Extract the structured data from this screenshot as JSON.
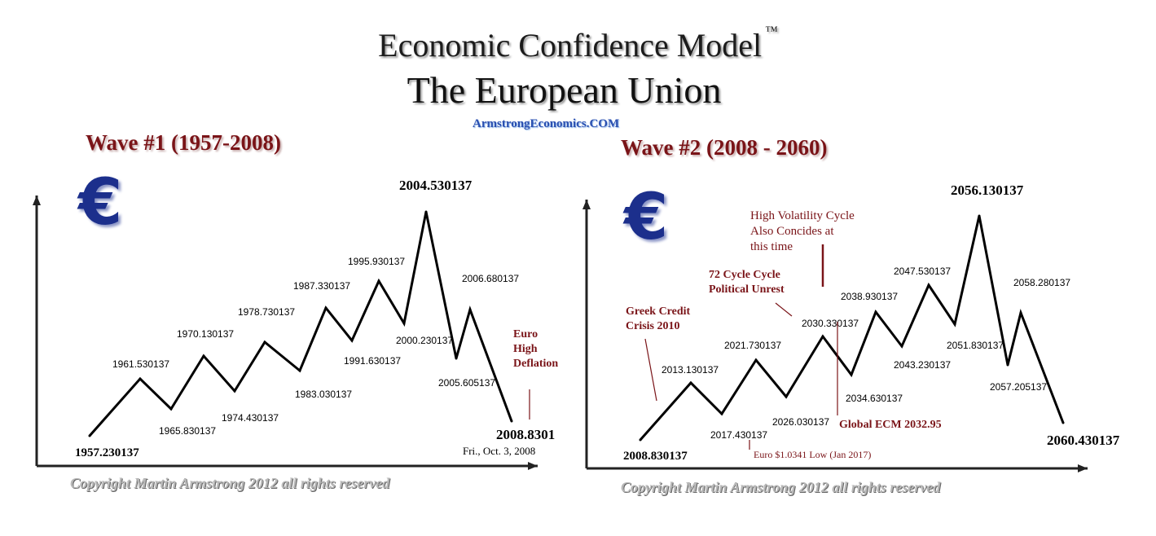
{
  "header": {
    "title_line1": "Economic Confidence Model",
    "trademark": "™",
    "title_line2": "The European Union",
    "website": "ArmstrongEconomics.COM"
  },
  "icons": {
    "currency": "euro-icon"
  },
  "colors": {
    "annotation": "#7a1418",
    "euro_logo": "#1c2f8c",
    "line": "#000000"
  },
  "chart_data": [
    {
      "type": "line",
      "title": "Wave #1 (1957-2008)",
      "euro_symbol": "€",
      "points": [
        {
          "x": 1957.230137,
          "label": "1957.230137",
          "kind": "low"
        },
        {
          "x": 1961.530137,
          "label": "1961.530137",
          "kind": "high"
        },
        {
          "x": 1965.830137,
          "label": "1965.830137",
          "kind": "low"
        },
        {
          "x": 1970.130137,
          "label": "1970.130137",
          "kind": "high"
        },
        {
          "x": 1974.430137,
          "label": "1974.430137",
          "kind": "low"
        },
        {
          "x": 1978.730137,
          "label": "1978.730137",
          "kind": "high"
        },
        {
          "x": 1983.030137,
          "label": "1983.030137",
          "kind": "low"
        },
        {
          "x": 1987.330137,
          "label": "1987.330137",
          "kind": "high"
        },
        {
          "x": 1991.630137,
          "label": "1991.630137",
          "kind": "low"
        },
        {
          "x": 1995.930137,
          "label": "1995.930137",
          "kind": "high"
        },
        {
          "x": 2000.230137,
          "label": "2000.230137",
          "kind": "low"
        },
        {
          "x": 2004.530137,
          "label": "2004.530137",
          "kind": "peak"
        },
        {
          "x": 2005.605137,
          "label": "2005.605137",
          "kind": "low"
        },
        {
          "x": 2006.680137,
          "label": "2006.680137",
          "kind": "high"
        },
        {
          "x": 2008.8301,
          "label": "2008.8301",
          "kind": "end"
        }
      ],
      "annotations": {
        "end_date": "Fri., Oct.  3,  2008",
        "deflation_lines": [
          "Euro",
          "High",
          "Deflation"
        ]
      },
      "copyright": "Copyright Martin Armstrong 2012 all rights reserved"
    },
    {
      "type": "line",
      "title": "Wave #2 (2008 - 2060)",
      "euro_symbol": "€",
      "points": [
        {
          "x": 2008.830137,
          "label": "2008.830137",
          "kind": "low"
        },
        {
          "x": 2013.130137,
          "label": "2013.130137",
          "kind": "high"
        },
        {
          "x": 2017.430137,
          "label": "2017.430137",
          "kind": "low"
        },
        {
          "x": 2021.730137,
          "label": "2021.730137",
          "kind": "high"
        },
        {
          "x": 2026.030137,
          "label": "2026.030137",
          "kind": "low"
        },
        {
          "x": 2030.330137,
          "label": "2030.330137",
          "kind": "high"
        },
        {
          "x": 2034.630137,
          "label": "2034.630137",
          "kind": "low"
        },
        {
          "x": 2038.930137,
          "label": "2038.930137",
          "kind": "high"
        },
        {
          "x": 2043.230137,
          "label": "2043.230137",
          "kind": "low"
        },
        {
          "x": 2047.530137,
          "label": "2047.530137",
          "kind": "high"
        },
        {
          "x": 2051.830137,
          "label": "2051.830137",
          "kind": "low"
        },
        {
          "x": 2056.130137,
          "label": "2056.130137",
          "kind": "peak"
        },
        {
          "x": 2057.205137,
          "label": "2057.205137",
          "kind": "low"
        },
        {
          "x": 2058.280137,
          "label": "2058.280137",
          "kind": "high"
        },
        {
          "x": 2060.430137,
          "label": "2060.430137",
          "kind": "end"
        }
      ],
      "annotations": {
        "greek": [
          "Greek Credit",
          "Crisis 2010"
        ],
        "cycle72": [
          "72 Cycle Cycle",
          "Political Unrest"
        ],
        "volatility": [
          "High Volatility Cycle",
          "Also Concides at",
          "this time"
        ],
        "global_ecm": "Global ECM 2032.95",
        "euro_low": "Euro $1.0341 Low (Jan 2017)"
      },
      "copyright": "Copyright Martin Armstrong 2012 all rights reserved"
    }
  ]
}
